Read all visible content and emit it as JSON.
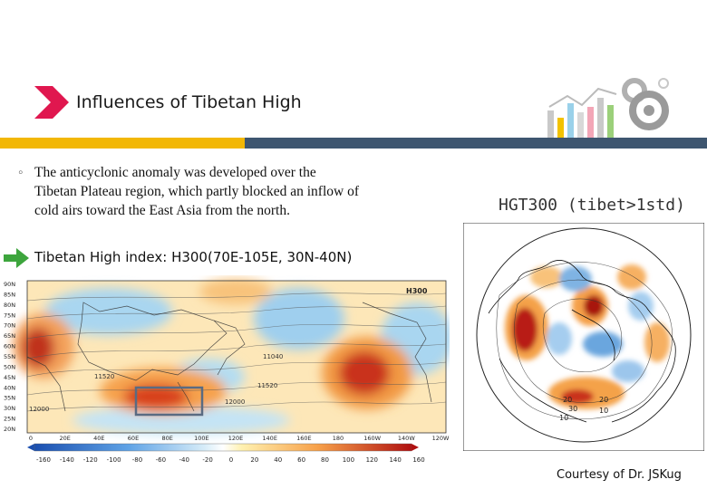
{
  "slide": {
    "title": "Influences of Tibetan High",
    "bullet_marker": "◦",
    "bullet_line1": "The anticyclonic anomaly was developed over the",
    "bullet_line2": "Tibetan Plateau region, which partly blocked an inflow of",
    "bullet_line3": "cold airs toward the East Asia from the north.",
    "index_label": "Tibetan High index: H300(70E-105E, 30N-40N)",
    "credit": "Courtesy of Dr. JSKug",
    "accent_yellow": "#f2b705",
    "accent_slate": "#3e5670",
    "title_arrow_color": "#e0174f",
    "green_arrow_color": "#3da53d"
  },
  "map": {
    "panel_label": "H300",
    "lat_labels": [
      "90N",
      "85N",
      "80N",
      "75N",
      "70N",
      "65N",
      "60N",
      "55N",
      "50N",
      "45N",
      "40N",
      "35N",
      "30N",
      "25N",
      "20N"
    ],
    "lon_labels": [
      "0",
      "20E",
      "40E",
      "60E",
      "80E",
      "100E",
      "120E",
      "140E",
      "160E",
      "180",
      "160W",
      "140W",
      "120W"
    ],
    "contour_labels": [
      "11040",
      "11520",
      "11520",
      "12000",
      "12000"
    ],
    "colorbar_labels": [
      "-160",
      "-140",
      "-120",
      "-100",
      "-80",
      "-60",
      "-40",
      "-20",
      "0",
      "20",
      "40",
      "60",
      "80",
      "100",
      "120",
      "140",
      "160"
    ],
    "box_region": "70E-105E, 30N-40N"
  },
  "polar": {
    "title": "HGT300 (tibet>1std)",
    "contour_labels": [
      "20",
      "30",
      "20",
      "10",
      "10"
    ]
  }
}
